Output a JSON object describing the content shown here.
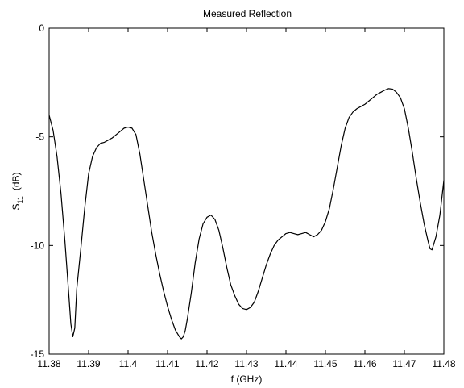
{
  "chart_data": {
    "type": "line",
    "title": "Measured Reflection",
    "xlabel": "f (GHz)",
    "ylabel": {
      "base": "S",
      "sub": "11",
      "unit": "(dB)"
    },
    "xlim": [
      11.38,
      11.48
    ],
    "ylim": [
      -15,
      0
    ],
    "xticks": [
      "11.38",
      "11.39",
      "11.4",
      "11.41",
      "11.42",
      "11.43",
      "11.44",
      "11.45",
      "11.46",
      "11.47",
      "11.48"
    ],
    "yticks": [
      "0",
      "-5",
      "-10",
      "-15"
    ],
    "grid": false,
    "line_color": "#000000",
    "series": [
      {
        "x": [
          11.38,
          11.381,
          11.382,
          11.383,
          11.384,
          11.385,
          11.3855,
          11.386,
          11.3865,
          11.387,
          11.388,
          11.389,
          11.39,
          11.391,
          11.392,
          11.393,
          11.394,
          11.395,
          11.396,
          11.397,
          11.398,
          11.399,
          11.4,
          11.401,
          11.402,
          11.403,
          11.404,
          11.405,
          11.406,
          11.407,
          11.408,
          11.409,
          11.41,
          11.411,
          11.412,
          11.413,
          11.4135,
          11.414,
          11.4145,
          11.415,
          11.416,
          11.417,
          11.418,
          11.419,
          11.42,
          11.421,
          11.422,
          11.423,
          11.424,
          11.425,
          11.426,
          11.427,
          11.428,
          11.429,
          11.43,
          11.431,
          11.432,
          11.433,
          11.434,
          11.435,
          11.436,
          11.437,
          11.438,
          11.439,
          11.44,
          11.441,
          11.442,
          11.443,
          11.444,
          11.445,
          11.446,
          11.447,
          11.448,
          11.449,
          11.45,
          11.451,
          11.452,
          11.453,
          11.454,
          11.455,
          11.456,
          11.457,
          11.458,
          11.459,
          11.46,
          11.461,
          11.462,
          11.463,
          11.464,
          11.465,
          11.466,
          11.467,
          11.468,
          11.469,
          11.47,
          11.471,
          11.472,
          11.473,
          11.474,
          11.475,
          11.476,
          11.4765,
          11.477,
          11.478,
          11.479,
          11.48
        ],
        "y": [
          -4.0,
          -4.7,
          -5.9,
          -7.6,
          -9.8,
          -12.3,
          -13.6,
          -14.2,
          -13.8,
          -12.0,
          -10.2,
          -8.3,
          -6.7,
          -5.9,
          -5.5,
          -5.3,
          -5.25,
          -5.15,
          -5.05,
          -4.9,
          -4.75,
          -4.6,
          -4.55,
          -4.6,
          -4.9,
          -5.8,
          -7.0,
          -8.2,
          -9.4,
          -10.4,
          -11.3,
          -12.1,
          -12.8,
          -13.4,
          -13.9,
          -14.2,
          -14.3,
          -14.2,
          -13.9,
          -13.4,
          -12.2,
          -10.8,
          -9.7,
          -9.0,
          -8.7,
          -8.6,
          -8.8,
          -9.3,
          -10.1,
          -11.0,
          -11.8,
          -12.3,
          -12.7,
          -12.9,
          -12.95,
          -12.85,
          -12.6,
          -12.1,
          -11.5,
          -10.9,
          -10.4,
          -10.0,
          -9.75,
          -9.6,
          -9.45,
          -9.4,
          -9.45,
          -9.5,
          -9.45,
          -9.4,
          -9.5,
          -9.6,
          -9.5,
          -9.3,
          -8.9,
          -8.3,
          -7.4,
          -6.4,
          -5.4,
          -4.6,
          -4.1,
          -3.85,
          -3.7,
          -3.6,
          -3.5,
          -3.35,
          -3.2,
          -3.05,
          -2.95,
          -2.85,
          -2.78,
          -2.8,
          -2.95,
          -3.2,
          -3.7,
          -4.6,
          -5.7,
          -6.9,
          -8.0,
          -9.0,
          -9.8,
          -10.15,
          -10.2,
          -9.6,
          -8.6,
          -7.0
        ]
      }
    ]
  }
}
